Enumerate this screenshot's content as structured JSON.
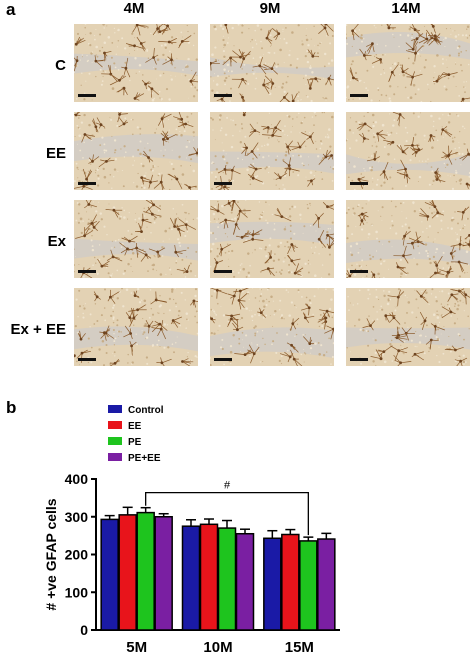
{
  "figure": {
    "panel_a": {
      "label": "a",
      "columns": [
        "4M",
        "9M",
        "14M"
      ],
      "rows": [
        "C",
        "EE",
        "Ex",
        "Ex + EE"
      ]
    },
    "panel_b": {
      "label": "b"
    }
  },
  "chart_data": {
    "type": "bar",
    "categories": [
      "5M",
      "10M",
      "15M"
    ],
    "series": [
      {
        "name": "Control",
        "color": "#1a1aa6",
        "values": [
          293,
          275,
          243
        ],
        "errors": [
          10,
          17,
          20
        ]
      },
      {
        "name": "EE",
        "color": "#e8141b",
        "values": [
          305,
          280,
          253
        ],
        "errors": [
          20,
          14,
          13
        ]
      },
      {
        "name": "PE",
        "color": "#1ec41e",
        "values": [
          311,
          270,
          236
        ],
        "errors": [
          13,
          20,
          10
        ]
      },
      {
        "name": "PE+EE",
        "color": "#7a1fa2",
        "values": [
          300,
          255,
          241
        ],
        "errors": [
          8,
          12,
          15
        ]
      }
    ],
    "ylabel": "# +ve GFAP cells",
    "xlabel": "",
    "ylim": [
      0,
      400
    ],
    "yticks": [
      0,
      100,
      200,
      300,
      400
    ],
    "legend": "top-left",
    "annotation": {
      "text": "#",
      "from_category": "5M",
      "to_category": "15M"
    }
  }
}
